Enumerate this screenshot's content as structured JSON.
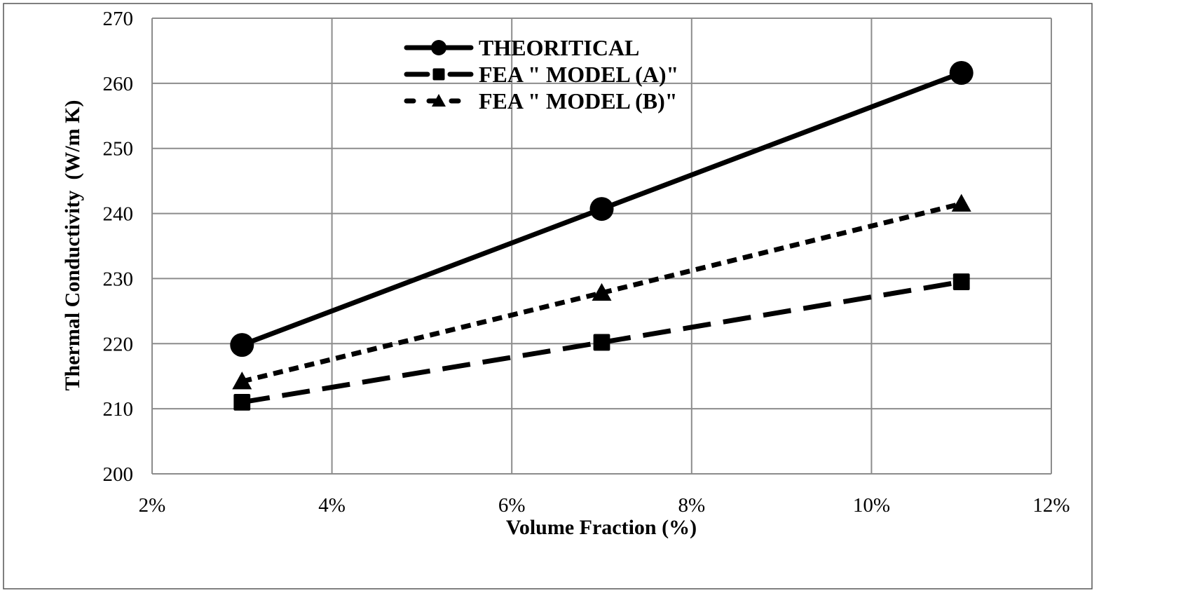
{
  "chart_data": {
    "type": "line",
    "title": "",
    "xlabel": "Volume Fraction (%)",
    "ylabel": "Thermal Conductivity  (W/m K)",
    "xlim": [
      2,
      12
    ],
    "ylim": [
      200,
      270
    ],
    "x_ticks": [
      2,
      4,
      6,
      8,
      10,
      12
    ],
    "x_tick_labels": [
      "2%",
      "4%",
      "6%",
      "8%",
      "10%",
      "12%"
    ],
    "y_ticks": [
      200,
      210,
      220,
      230,
      240,
      250,
      260,
      270
    ],
    "y_tick_labels": [
      "200",
      "210",
      "220",
      "230",
      "240",
      "250",
      "260",
      "270"
    ],
    "grid": true,
    "legend_position": "top-center",
    "x": [
      3,
      7,
      11
    ],
    "series": [
      {
        "name": "THEORITICAL",
        "values": [
          219.8,
          240.7,
          261.6
        ],
        "marker": "circle",
        "dash": "solid",
        "color": "#000000"
      },
      {
        "name": "FEA \" MODEL (A)\"",
        "values": [
          211.0,
          220.2,
          229.5
        ],
        "marker": "square",
        "dash": "long-dash",
        "color": "#000000"
      },
      {
        "name": "FEA \" MODEL (B)\"",
        "values": [
          214.2,
          227.8,
          241.5
        ],
        "marker": "triangle",
        "dash": "short-dash",
        "color": "#000000"
      }
    ],
    "colors": {
      "grid": "#8c8c8c",
      "border": "#555555",
      "text": "#000000"
    }
  }
}
